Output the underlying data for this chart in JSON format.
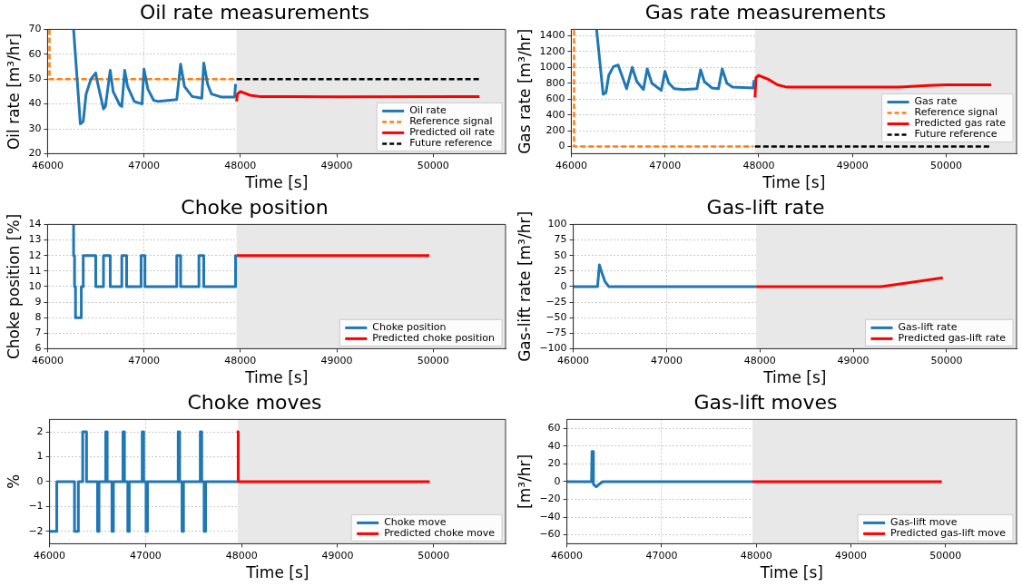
{
  "chart_data": [
    {
      "type": "line",
      "title": "Oil rate measurements",
      "xlabel": "Time [s]",
      "ylabel": "Oil rate [m³/hr]",
      "xlim": [
        46000,
        50750
      ],
      "xticks": [
        46000,
        47000,
        48000,
        49000,
        50000
      ],
      "ylim": [
        20,
        70
      ],
      "yticks": [
        20,
        30,
        40,
        50,
        60,
        70
      ],
      "grid": true,
      "legend": "bottom right",
      "marker": "none",
      "bands": [
        {
          "axis": "x",
          "from": 47960,
          "to": 50750,
          "color": "#e8e8e8"
        }
      ],
      "series": [
        {
          "name": "Oil rate",
          "color": "#1f77b4",
          "x": [
            46270,
            46340,
            46370,
            46400,
            46450,
            46500,
            46510,
            46580,
            46600,
            46650,
            46680,
            46750,
            46770,
            46800,
            46830,
            46900,
            46980,
            47000,
            47040,
            47100,
            47150,
            47340,
            47380,
            47420,
            47500,
            47600,
            47620,
            47660,
            47700,
            47800,
            47940,
            47950
          ],
          "values": [
            70,
            32,
            33,
            44,
            50,
            52.5,
            50,
            38,
            39,
            53.5,
            45,
            39.5,
            39,
            53.5,
            47,
            41,
            40,
            54,
            46,
            41.5,
            41,
            41.8,
            56,
            47,
            43,
            42.3,
            56.5,
            48,
            44,
            42.8,
            42.8,
            48
          ]
        },
        {
          "name": "Reference signal",
          "color": "#ff7f0e",
          "line_style": "dashed",
          "x": [
            46020,
            46020,
            47950
          ],
          "values": [
            70,
            50,
            50
          ]
        },
        {
          "name": "Predicted oil rate",
          "color": "#ff0000",
          "x": [
            47960,
            47970,
            48000,
            48100,
            48200,
            48500,
            49000,
            50480
          ],
          "values": [
            41,
            44,
            45,
            43.5,
            43,
            43,
            42.9,
            43
          ]
        },
        {
          "name": "Future reference",
          "color": "#000000",
          "line_style": "dashed",
          "x": [
            47960,
            50480
          ],
          "values": [
            50,
            50
          ]
        }
      ]
    },
    {
      "type": "line",
      "title": "Gas rate measurements",
      "xlabel": "Time [s]",
      "ylabel": "Gas rate [m³/hr]",
      "xlim": [
        46000,
        50750
      ],
      "xticks": [
        46000,
        47000,
        48000,
        49000,
        50000
      ],
      "ylim": [
        -90,
        1480
      ],
      "yticks": [
        0,
        200,
        400,
        600,
        800,
        1000,
        1200,
        1400
      ],
      "grid": true,
      "legend": "bottom right",
      "marker": "none",
      "bands": [
        {
          "axis": "x",
          "from": 47960,
          "to": 50750,
          "color": "#e8e8e8"
        }
      ],
      "series": [
        {
          "name": "Gas rate",
          "color": "#1f77b4",
          "x": [
            46270,
            46340,
            46370,
            46400,
            46450,
            46500,
            46590,
            46650,
            46700,
            46770,
            46810,
            46860,
            46960,
            47000,
            47040,
            47100,
            47200,
            47340,
            47380,
            47420,
            47500,
            47570,
            47610,
            47660,
            47720,
            47940,
            47950
          ],
          "values": [
            1480,
            660,
            680,
            900,
            1010,
            1030,
            730,
            1000,
            820,
            720,
            980,
            800,
            710,
            950,
            800,
            730,
            720,
            730,
            970,
            820,
            740,
            730,
            980,
            800,
            750,
            740,
            840
          ]
        },
        {
          "name": "Reference signal",
          "color": "#ff7f0e",
          "line_style": "dashed",
          "x": [
            46030,
            46030,
            47940
          ],
          "values": [
            1470,
            0,
            0
          ]
        },
        {
          "name": "Predicted gas rate",
          "color": "#ff0000",
          "x": [
            47960,
            47970,
            48000,
            48100,
            48200,
            48300,
            49000,
            49500,
            49800,
            50000,
            50480
          ],
          "values": [
            620,
            870,
            900,
            850,
            780,
            750,
            750,
            750,
            770,
            780,
            780
          ]
        },
        {
          "name": "Future reference",
          "color": "#000000",
          "line_style": "dashed",
          "x": [
            47960,
            50480
          ],
          "values": [
            0,
            0
          ]
        }
      ]
    },
    {
      "type": "step",
      "title": "Choke position",
      "xlabel": "Time [s]",
      "ylabel": "Choke position [%]",
      "xlim": [
        46000,
        50750
      ],
      "xticks": [
        46000,
        47000,
        48000,
        49000,
        50000
      ],
      "ylim": [
        6,
        14
      ],
      "yticks": [
        6,
        7,
        8,
        9,
        10,
        11,
        12,
        13,
        14
      ],
      "grid": true,
      "legend": "bottom right",
      "marker": "none",
      "bands": [
        {
          "axis": "x",
          "from": 47960,
          "to": 50750,
          "color": "#e8e8e8"
        }
      ],
      "series": [
        {
          "name": "Choke position",
          "color": "#1f77b4",
          "x": [
            46260,
            46270,
            46280,
            46290,
            46350,
            46370,
            46500,
            46580,
            46650,
            46770,
            46820,
            46970,
            47010,
            47340,
            47380,
            47570,
            47620,
            47950,
            47960
          ],
          "values": [
            14,
            12,
            10,
            8,
            10,
            12,
            10,
            12,
            10,
            12,
            10,
            12,
            10,
            12,
            10,
            12,
            10,
            12,
            12
          ]
        },
        {
          "name": "Predicted choke position",
          "color": "#ff0000",
          "x": [
            47960,
            49960
          ],
          "values": [
            12,
            12
          ]
        }
      ]
    },
    {
      "type": "line",
      "title": "Gas-lift rate",
      "xlabel": "Time [s]",
      "ylabel": "Gas-lift rate [m³/hr]",
      "xlim": [
        46000,
        50750
      ],
      "xticks": [
        46000,
        47000,
        48000,
        49000,
        50000
      ],
      "ylim": [
        -100,
        100
      ],
      "yticks": [
        -100,
        -75,
        -50,
        -25,
        0,
        25,
        50,
        75,
        100
      ],
      "grid": true,
      "legend": "bottom right",
      "marker": "none",
      "bands": [
        {
          "axis": "x",
          "from": 47960,
          "to": 50750,
          "color": "#e8e8e8"
        }
      ],
      "series": [
        {
          "name": "Gas-lift rate",
          "color": "#1f77b4",
          "x": [
            46000,
            46260,
            46280,
            46300,
            46340,
            46380,
            47960
          ],
          "values": [
            0,
            0,
            35,
            25,
            8,
            0,
            0
          ]
        },
        {
          "name": "Predicted gas-lift rate",
          "color": "#ff0000",
          "x": [
            47960,
            49300,
            49960
          ],
          "values": [
            0,
            0,
            14
          ]
        }
      ]
    },
    {
      "type": "step",
      "title": "Choke moves",
      "xlabel": "Time [s]",
      "ylabel": "%",
      "xlim": [
        46000,
        50750
      ],
      "xticks": [
        46000,
        47000,
        48000,
        49000,
        50000
      ],
      "ylim": [
        -2.5,
        2.5
      ],
      "yticks": [
        -2,
        -1,
        0,
        1,
        2
      ],
      "grid": true,
      "legend": "bottom right",
      "marker": "none",
      "bands": [
        {
          "axis": "x",
          "from": 47960,
          "to": 50750,
          "color": "#e8e8e8"
        }
      ],
      "series": [
        {
          "name": "Choke move",
          "color": "#1f77b4",
          "x": [
            46000,
            46075,
            46260,
            46300,
            46345,
            46385,
            46500,
            46515,
            46585,
            46600,
            46650,
            46665,
            46765,
            46780,
            46815,
            46830,
            46965,
            46980,
            47005,
            47020,
            47340,
            47355,
            47380,
            47395,
            47570,
            47585,
            47610,
            47625,
            47960
          ],
          "values": [
            -2,
            0,
            -2,
            0,
            2,
            0,
            -2,
            0,
            2,
            0,
            -2,
            0,
            2,
            0,
            -2,
            0,
            2,
            0,
            -2,
            0,
            2,
            0,
            -2,
            0,
            2,
            0,
            -2,
            0,
            0
          ]
        },
        {
          "name": "Predicted choke move",
          "color": "#ff0000",
          "x": [
            47950,
            47965,
            49960
          ],
          "values": [
            2,
            0,
            0
          ]
        }
      ]
    },
    {
      "type": "line",
      "title": "Gas-lift moves",
      "xlabel": "Time [s]",
      "ylabel": "[m³/hr]",
      "xlim": [
        46000,
        50750
      ],
      "xticks": [
        46000,
        47000,
        48000,
        49000,
        50000
      ],
      "ylim": [
        -70,
        70
      ],
      "yticks": [
        -60,
        -40,
        -20,
        0,
        20,
        40,
        60
      ],
      "grid": true,
      "legend": "bottom right",
      "marker": "none",
      "bands": [
        {
          "axis": "x",
          "from": 47960,
          "to": 50750,
          "color": "#e8e8e8"
        }
      ],
      "series": [
        {
          "name": "Gas-lift move",
          "color": "#1f77b4",
          "x": [
            46000,
            46260,
            46265,
            46275,
            46280,
            46310,
            46340,
            46380,
            47960
          ],
          "values": [
            0,
            0,
            34,
            34,
            -3,
            -6,
            -3,
            0,
            0
          ]
        },
        {
          "name": "Predicted gas-lift move",
          "color": "#ff0000",
          "x": [
            47960,
            49960
          ],
          "values": [
            0,
            0
          ]
        }
      ]
    }
  ]
}
